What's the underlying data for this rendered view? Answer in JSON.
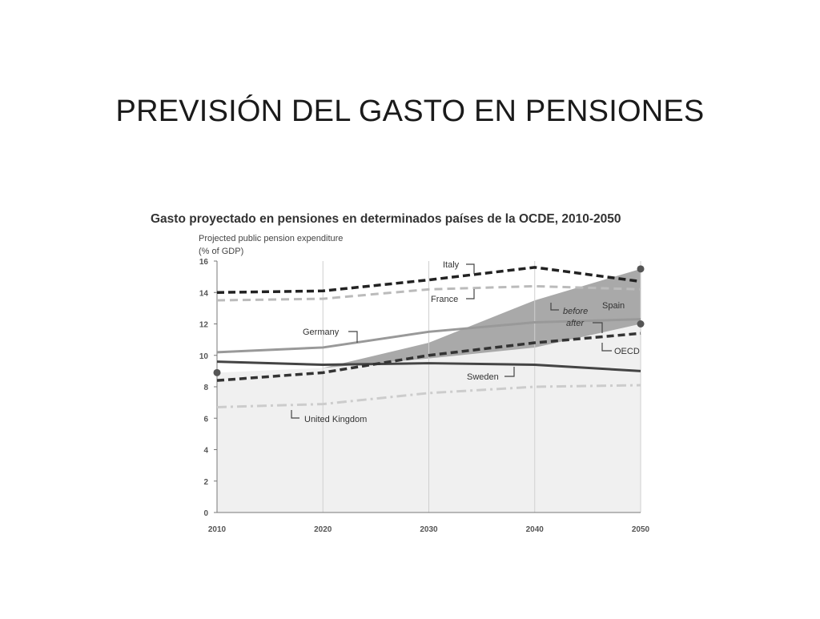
{
  "slide": {
    "title": "PREVISIÓN DEL GASTO EN PENSIONES"
  },
  "chart_data": {
    "type": "line",
    "title": "Gasto proyectado en pensiones en determinados países de la OCDE, 2010-2050",
    "ylabel_line1": "Projected public pension expenditure",
    "ylabel_line2": "(% of GDP)",
    "ylim": [
      0,
      16
    ],
    "yticks": [
      0,
      2,
      4,
      6,
      8,
      10,
      12,
      14,
      16
    ],
    "x": [
      2010,
      2020,
      2030,
      2040,
      2050
    ],
    "grid": false,
    "series": [
      {
        "name": "Italy",
        "values": [
          14.0,
          14.1,
          14.8,
          15.6,
          14.7
        ],
        "color": "#222222",
        "style": "dashed-heavy"
      },
      {
        "name": "France",
        "values": [
          13.5,
          13.6,
          14.2,
          14.4,
          14.2
        ],
        "color": "#bbbbbb",
        "style": "dashed"
      },
      {
        "name": "Germany",
        "values": [
          10.2,
          10.5,
          11.5,
          12.1,
          12.3
        ],
        "color": "#999999",
        "style": "solid"
      },
      {
        "name": "Sweden",
        "values": [
          9.6,
          9.4,
          9.5,
          9.4,
          9.0
        ],
        "color": "#444444",
        "style": "solid"
      },
      {
        "name": "OECD",
        "values": [
          8.4,
          8.9,
          10.0,
          10.8,
          11.4
        ],
        "color": "#333333",
        "style": "dashed-heavy"
      },
      {
        "name": "United Kingdom",
        "values": [
          6.7,
          6.9,
          7.6,
          8.0,
          8.1
        ],
        "color": "#cccccc",
        "style": "dashdot"
      }
    ],
    "spain": {
      "name": "Spain",
      "before_label": "before",
      "after_label": "after",
      "before": [
        8.9,
        9.2,
        10.8,
        13.5,
        15.5
      ],
      "after": [
        8.9,
        9.2,
        9.8,
        10.5,
        12.0
      ]
    },
    "annotations": [
      "Italy",
      "France",
      "Germany",
      "Spain",
      "before",
      "after",
      "OECD",
      "Sweden",
      "United Kingdom"
    ]
  }
}
